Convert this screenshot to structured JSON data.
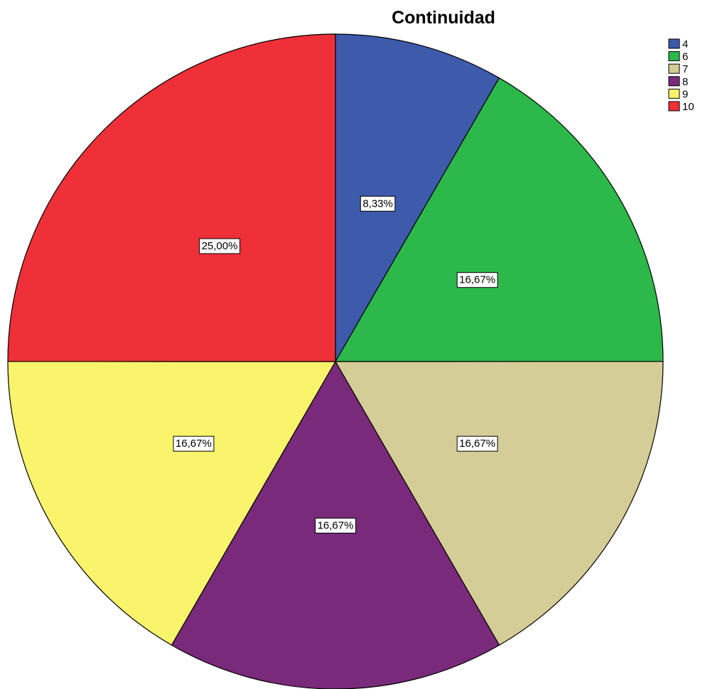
{
  "chart_data": {
    "type": "pie",
    "title": "Continuidad",
    "categories": [
      "4",
      "6",
      "7",
      "8",
      "9",
      "10"
    ],
    "values": [
      8.33,
      16.67,
      16.67,
      16.67,
      16.67,
      25.0
    ],
    "labels": [
      "8,33%",
      "16,67%",
      "16,67%",
      "16,67%",
      "16,67%",
      "25,00%"
    ],
    "colors": [
      "#3d5aab",
      "#2db84a",
      "#d4cd97",
      "#7a2a7a",
      "#f9f46c",
      "#ee3039"
    ],
    "start": "12 o'clock",
    "direction": "clockwise",
    "legend": "top-right"
  }
}
